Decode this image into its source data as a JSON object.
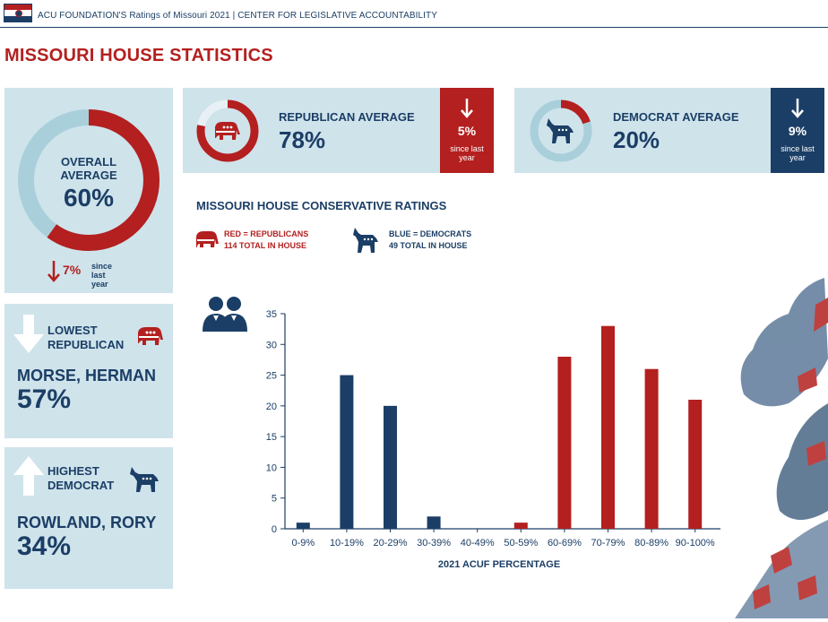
{
  "header": {
    "text": "ACU FOUNDATION'S Ratings of Missouri 2021 | CENTER FOR LEGISLATIVE ACCOUNTABILITY"
  },
  "page_title": "MISSOURI HOUSE STATISTICS",
  "colors": {
    "red": "#b3201f",
    "blue": "#1b3e66",
    "light": "#cfe3eb",
    "ring": "#a9cfdb"
  },
  "overall": {
    "label_line1": "OVERALL",
    "label_line2": "AVERAGE",
    "value": "60%",
    "value_num": 60,
    "change": "7%",
    "change_since_1": "since",
    "change_since_2": "last year"
  },
  "republican": {
    "title": "REPUBLICAN AVERAGE",
    "value": "78%",
    "value_num": 78,
    "change": "5%",
    "since_1": "since last",
    "since_2": "year"
  },
  "democrat": {
    "title": "DEMOCRAT AVERAGE",
    "value": "20%",
    "value_num": 20,
    "change": "9%",
    "since_1": "since last",
    "since_2": "year"
  },
  "lowest": {
    "label_1": "LOWEST",
    "label_2": "REPUBLICAN",
    "name": "MORSE, HERMAN",
    "value": "57%"
  },
  "highest": {
    "label_1": "HIGHEST",
    "label_2": "DEMOCRAT",
    "name": "ROWLAND, RORY",
    "value": "34%"
  },
  "section_title": "MISSOURI HOUSE CONSERVATIVE RATINGS",
  "legend": {
    "red_line1": "RED = REPUBLICANS",
    "red_count": "114",
    "red_line2_rest": " TOTAL IN HOUSE",
    "blue_line1": "BLUE = DEMOCRATS",
    "blue_count": "49",
    "blue_line2_rest": " TOTAL IN HOUSE"
  },
  "chart_data": {
    "type": "bar",
    "title": "MISSOURI HOUSE CONSERVATIVE RATINGS",
    "xlabel": "2021 ACUF PERCENTAGE",
    "ylabel": "",
    "categories": [
      "0-9%",
      "10-19%",
      "20-29%",
      "30-39%",
      "40-49%",
      "50-59%",
      "60-69%",
      "70-79%",
      "80-89%",
      "90-100%"
    ],
    "values": [
      1,
      25,
      20,
      2,
      0,
      1,
      28,
      33,
      26,
      21
    ],
    "bar_party": [
      "D",
      "D",
      "D",
      "D",
      "D",
      "R",
      "R",
      "R",
      "R",
      "R"
    ],
    "yticks": [
      0,
      5,
      10,
      15,
      20,
      25,
      30,
      35
    ],
    "ylim": [
      0,
      35
    ],
    "grid": false
  }
}
